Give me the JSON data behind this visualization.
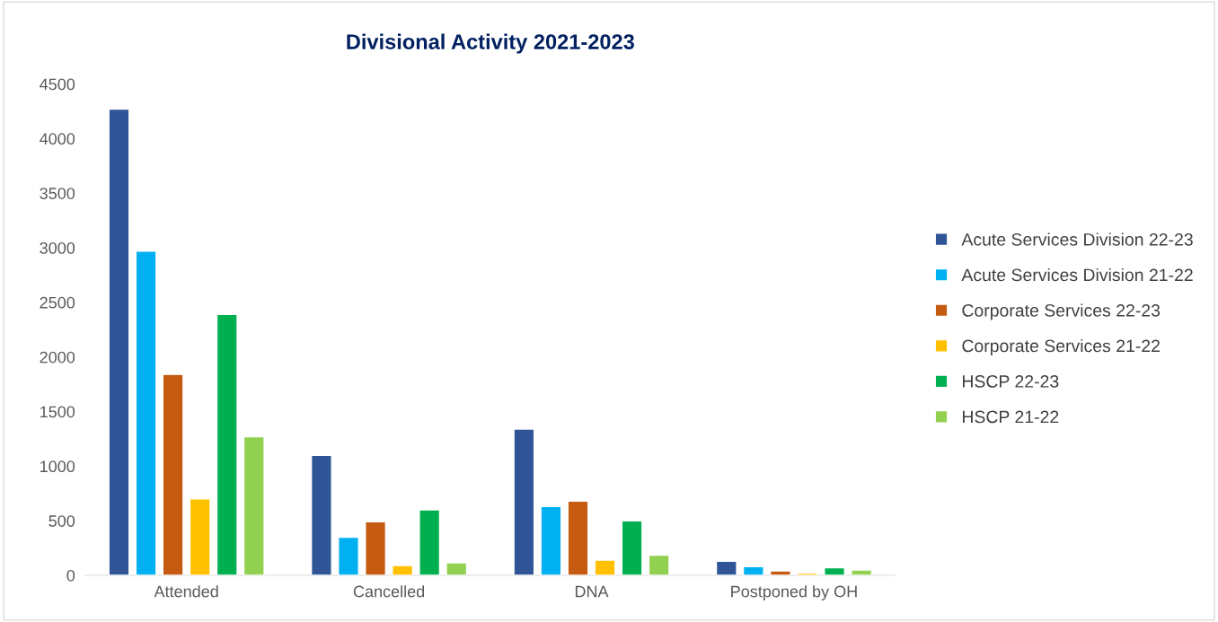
{
  "chart_data": {
    "type": "bar",
    "title": "Divisional Activity 2021-2023",
    "categories": [
      "Attended",
      "Cancelled",
      "DNA",
      "Postponed by OH"
    ],
    "series": [
      {
        "name": "Acute Services Division 22-23",
        "color": "#2f5597",
        "values": [
          4270,
          1100,
          1340,
          130
        ]
      },
      {
        "name": "Acute Services Division 21-22",
        "color": "#00b0f0",
        "values": [
          2970,
          350,
          630,
          80
        ]
      },
      {
        "name": "Corporate Services 22-23",
        "color": "#c55a11",
        "values": [
          1840,
          490,
          680,
          40
        ]
      },
      {
        "name": "Corporate Services 21-22",
        "color": "#ffc000",
        "values": [
          700,
          90,
          140,
          20
        ]
      },
      {
        "name": "HSCP 22-23",
        "color": "#00b050",
        "values": [
          2390,
          600,
          500,
          70
        ]
      },
      {
        "name": "HSCP 21-22",
        "color": "#92d050",
        "values": [
          1270,
          115,
          185,
          50
        ]
      }
    ],
    "ylim": [
      0,
      4500
    ],
    "yticks": [
      0,
      500,
      1000,
      1500,
      2000,
      2500,
      3000,
      3500,
      4000,
      4500
    ],
    "grid": false,
    "legend": "right"
  }
}
